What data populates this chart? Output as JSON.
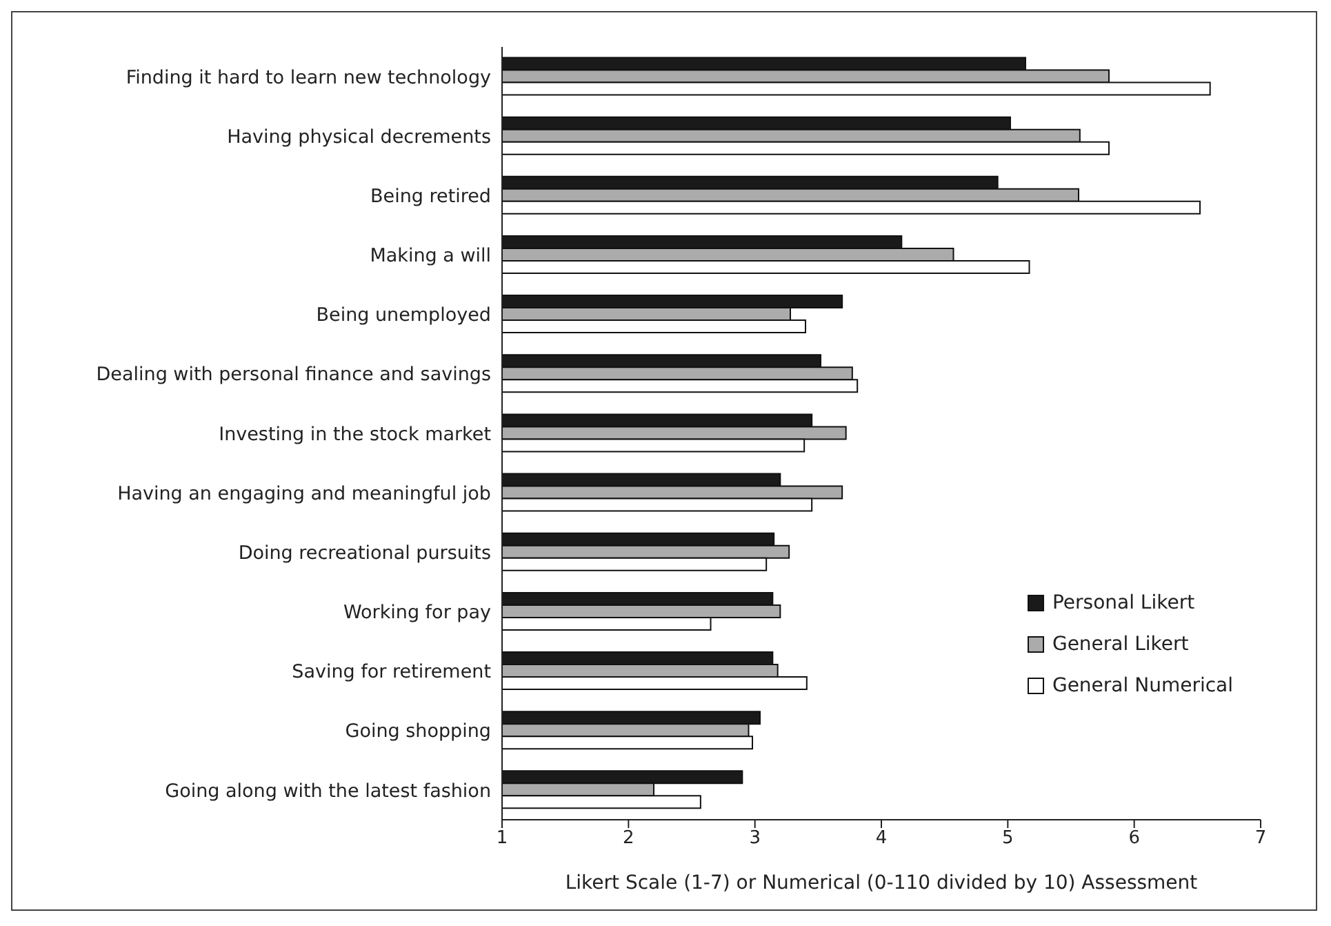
{
  "chart_data": {
    "type": "bar",
    "orientation": "horizontal",
    "xlabel": "Likert Scale (1-7) or Numerical (0-110 divided by 10) Assessment",
    "categories": [
      "Finding it hard to learn new technology",
      "Having physical decrements",
      "Being retired",
      "Making a will",
      "Being unemployed",
      "Dealing with personal finance and savings",
      "Investing in the stock market",
      "Having an engaging and meaningful job",
      "Doing recreational pursuits",
      "Working for pay",
      "Saving for retirement",
      "Going shopping",
      "Going along with the latest fashion"
    ],
    "series": [
      {
        "name": "Personal Likert",
        "color": "#1a1a1a",
        "values": [
          5.14,
          5.02,
          4.92,
          4.16,
          3.69,
          3.52,
          3.45,
          3.2,
          3.15,
          3.14,
          3.14,
          3.04,
          2.9
        ]
      },
      {
        "name": "General Likert",
        "color": "#ababab",
        "values": [
          5.8,
          5.57,
          5.56,
          4.57,
          3.28,
          3.77,
          3.72,
          3.69,
          3.27,
          3.2,
          3.18,
          2.95,
          2.2
        ]
      },
      {
        "name": "General Numerical",
        "color": "#ffffff",
        "values": [
          6.6,
          5.8,
          6.52,
          5.17,
          3.4,
          3.81,
          3.39,
          3.45,
          3.09,
          2.65,
          3.41,
          2.98,
          2.57
        ]
      }
    ],
    "xlim": [
      1,
      7
    ],
    "xticks": [
      1,
      2,
      3,
      4,
      5,
      6,
      7
    ],
    "legend": "right",
    "grid": false
  }
}
